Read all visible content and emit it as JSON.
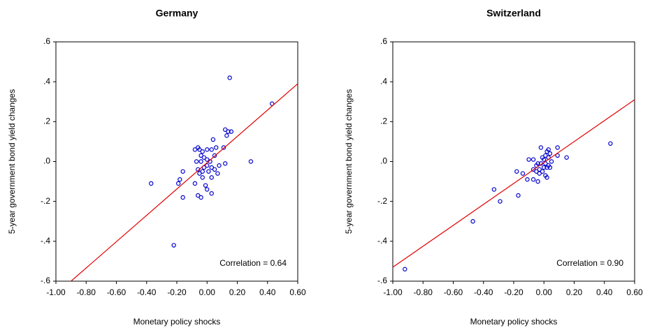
{
  "chart_data": [
    {
      "type": "scatter",
      "title": "Germany",
      "xlabel": "Monetary policy shocks",
      "ylabel": "5-year government bond yield changes",
      "annotation": "Correlation = 0.64",
      "color": "#0000cc",
      "x": [
        0.15,
        0.43,
        0.12,
        0.14,
        0.16,
        0.13,
        0.04,
        -0.08,
        -0.06,
        -0.05,
        -0.03,
        0.0,
        0.03,
        0.06,
        0.11,
        -0.04,
        -0.02,
        0.0,
        0.05,
        -0.07,
        -0.04,
        0.02,
        0.08,
        0.12,
        0.29,
        -0.06,
        -0.02,
        0.0,
        0.03,
        -0.05,
        -0.03,
        0.01,
        0.05,
        0.07,
        -0.16,
        -0.03,
        0.03,
        -0.18,
        -0.19,
        -0.08,
        -0.01,
        0.0,
        0.03,
        -0.16,
        -0.06,
        -0.04,
        -0.37,
        -0.22
      ],
      "y": [
        0.42,
        0.29,
        0.16,
        0.15,
        0.15,
        0.13,
        0.11,
        0.06,
        0.07,
        0.06,
        0.05,
        0.06,
        0.06,
        0.07,
        0.07,
        0.03,
        0.02,
        0.01,
        0.03,
        0.0,
        0.0,
        0.0,
        -0.02,
        -0.01,
        0.0,
        -0.04,
        -0.03,
        -0.02,
        -0.03,
        -0.06,
        -0.05,
        -0.05,
        -0.04,
        -0.06,
        -0.05,
        -0.08,
        -0.08,
        -0.09,
        -0.11,
        -0.11,
        -0.12,
        -0.14,
        -0.16,
        -0.18,
        -0.17,
        -0.18,
        -0.11,
        -0.42
      ],
      "fit_line": {
        "color": "#e00000",
        "x": [
          -0.9,
          0.6
        ],
        "y": [
          -0.6,
          0.39
        ]
      },
      "xlim": [
        -1.0,
        0.6
      ],
      "ylim": [
        -0.6,
        0.6
      ],
      "xticks": [
        {
          "value": -1.0,
          "label": "-1.00"
        },
        {
          "value": -0.8,
          "label": "-0.80"
        },
        {
          "value": -0.6,
          "label": "-0.60"
        },
        {
          "value": -0.4,
          "label": "-0.40"
        },
        {
          "value": -0.2,
          "label": "-0.20"
        },
        {
          "value": 0,
          "label": "0.00"
        },
        {
          "value": 0.2,
          "label": "0.20"
        },
        {
          "value": 0.4,
          "label": "0.40"
        },
        {
          "value": 0.6,
          "label": "0.60"
        }
      ],
      "yticks": [
        {
          "value": -0.6,
          "label": "-.6"
        },
        {
          "value": -0.4,
          "label": "-.4"
        },
        {
          "value": -0.2,
          "label": "-.2"
        },
        {
          "value": 0,
          "label": ".0"
        },
        {
          "value": 0.2,
          "label": ".2"
        },
        {
          "value": 0.4,
          "label": ".4"
        },
        {
          "value": 0.6,
          "label": ".6"
        }
      ]
    },
    {
      "type": "scatter",
      "title": "Switzerland",
      "xlabel": "Monetary policy shocks",
      "ylabel": "5-year government bond yield changes",
      "annotation": "Correlation = 0.90",
      "color": "#0000cc",
      "x": [
        0.44,
        0.09,
        -0.02,
        0.03,
        0.02,
        0.04,
        0.15,
        0.09,
        0.01,
        -0.01,
        0.03,
        -0.1,
        -0.07,
        0.0,
        0.05,
        -0.04,
        -0.02,
        0.01,
        0.03,
        -0.05,
        0.0,
        0.02,
        0.04,
        -0.07,
        -0.03,
        -0.01,
        -0.05,
        -0.18,
        -0.14,
        0.01,
        0.02,
        -0.03,
        -0.11,
        -0.07,
        -0.04,
        -0.33,
        -0.17,
        -0.29,
        -0.47,
        -0.92
      ],
      "y": [
        0.09,
        0.07,
        0.07,
        0.06,
        0.05,
        0.04,
        0.02,
        0.03,
        0.03,
        0.02,
        0.02,
        0.01,
        0.01,
        0.01,
        0.0,
        -0.01,
        -0.01,
        -0.01,
        -0.02,
        -0.02,
        -0.03,
        -0.03,
        -0.03,
        -0.04,
        -0.04,
        -0.05,
        -0.05,
        -0.05,
        -0.06,
        -0.07,
        -0.08,
        -0.06,
        -0.09,
        -0.09,
        -0.1,
        -0.14,
        -0.17,
        -0.2,
        -0.3,
        -0.54
      ],
      "fit_line": {
        "color": "#e00000",
        "x": [
          -1.0,
          0.6
        ],
        "y": [
          -0.53,
          0.31
        ]
      },
      "xlim": [
        -1.0,
        0.6
      ],
      "ylim": [
        -0.6,
        0.6
      ],
      "xticks": [
        {
          "value": -1.0,
          "label": "-1.00"
        },
        {
          "value": -0.8,
          "label": "-0.80"
        },
        {
          "value": -0.6,
          "label": "-0.60"
        },
        {
          "value": -0.4,
          "label": "-0.40"
        },
        {
          "value": -0.2,
          "label": "-0.20"
        },
        {
          "value": 0,
          "label": "0.00"
        },
        {
          "value": 0.2,
          "label": "0.20"
        },
        {
          "value": 0.4,
          "label": "0.40"
        },
        {
          "value": 0.6,
          "label": "0.60"
        }
      ],
      "yticks": [
        {
          "value": -0.6,
          "label": "-.6"
        },
        {
          "value": -0.4,
          "label": "-.4"
        },
        {
          "value": -0.2,
          "label": "-.2"
        },
        {
          "value": 0,
          "label": ".0"
        },
        {
          "value": 0.2,
          "label": ".2"
        },
        {
          "value": 0.4,
          "label": ".4"
        },
        {
          "value": 0.6,
          "label": ".6"
        }
      ]
    }
  ]
}
